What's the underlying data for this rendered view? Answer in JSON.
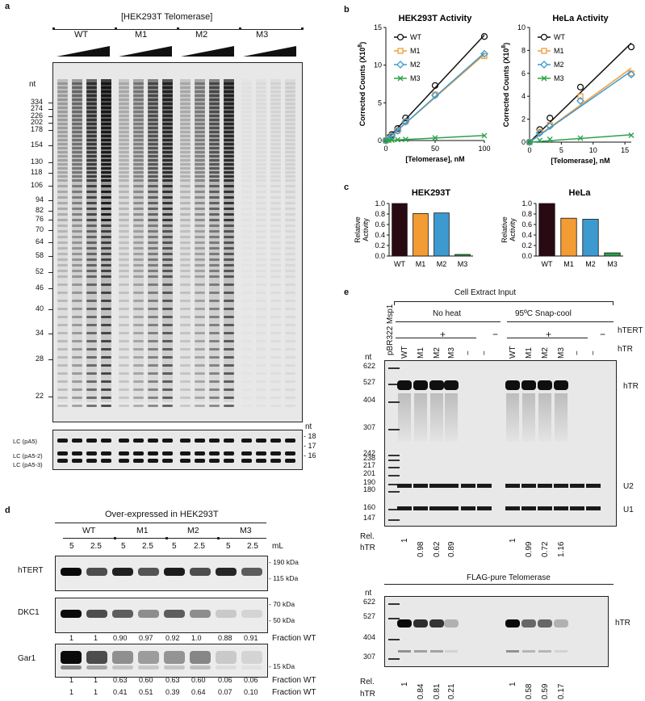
{
  "panels": {
    "a": "a",
    "b": "b",
    "c": "c",
    "d": "d",
    "e": "e"
  },
  "a": {
    "title": "[HEK293T Telomerase]",
    "groups": [
      "WT",
      "M1",
      "M2",
      "M3"
    ],
    "nt_label": "nt",
    "markers": [
      "334",
      "274",
      "226",
      "202",
      "178",
      "154",
      "130",
      "118",
      "106",
      "94",
      "82",
      "76",
      "70",
      "64",
      "58",
      "52",
      "46",
      "40",
      "34",
      "28",
      "22"
    ],
    "lc_labels": [
      "LC (pA5)",
      "LC (pA5-2)",
      "LC (pA5-3)"
    ],
    "lc_nt_label": "nt",
    "lc_markers": [
      "18",
      "17",
      "16"
    ]
  },
  "chart_data": [
    {
      "type": "line",
      "title": "HEK293T Activity",
      "xlabel": "[Telomerase], nM",
      "ylabel": "Corrected Counts (X10",
      "ylabel_sup": "8",
      "ylabel_end": ")",
      "xlim": [
        0,
        100
      ],
      "ylim": [
        0,
        15
      ],
      "xticks": [
        "0",
        "50",
        "100"
      ],
      "yticks": [
        "0",
        "5",
        "10",
        "15"
      ],
      "series": [
        {
          "name": "WT",
          "color": "#111111",
          "marker": "circle",
          "x": [
            0,
            3,
            6,
            12,
            20,
            50,
            100
          ],
          "y": [
            0,
            0.4,
            0.8,
            1.6,
            3.0,
            7.3,
            13.8
          ]
        },
        {
          "name": "M1",
          "color": "#f39c33",
          "marker": "square",
          "x": [
            0,
            3,
            6,
            12,
            20,
            50,
            100
          ],
          "y": [
            0,
            0.3,
            0.6,
            1.3,
            2.5,
            6.1,
            11.2
          ]
        },
        {
          "name": "M2",
          "color": "#3d9ad1",
          "marker": "diamond",
          "x": [
            0,
            3,
            6,
            12,
            20,
            50,
            100
          ],
          "y": [
            0,
            0.3,
            0.6,
            1.3,
            2.5,
            6.0,
            11.5
          ]
        },
        {
          "name": "M3",
          "color": "#2aa24a",
          "marker": "x",
          "x": [
            0,
            3,
            6,
            12,
            20,
            50,
            100
          ],
          "y": [
            0,
            0.02,
            0.05,
            0.1,
            0.15,
            0.35,
            0.65
          ]
        }
      ]
    },
    {
      "type": "line",
      "title": "HeLa Activity",
      "xlabel": "[Telomerase], nM",
      "ylabel": "Corrected Counts (X10",
      "ylabel_sup": "8",
      "ylabel_end": ")",
      "xlim": [
        0,
        16
      ],
      "ylim": [
        0,
        10
      ],
      "xticks": [
        "0",
        "5",
        "10",
        "15"
      ],
      "yticks": [
        "0",
        "2",
        "4",
        "6",
        "8",
        "10"
      ],
      "series": [
        {
          "name": "WT",
          "color": "#111111",
          "marker": "circle",
          "x": [
            0,
            1.6,
            3.2,
            8,
            16
          ],
          "y": [
            0,
            1.1,
            2.1,
            4.8,
            8.3
          ]
        },
        {
          "name": "M1",
          "color": "#f39c33",
          "marker": "square",
          "x": [
            0,
            1.6,
            3.2,
            8,
            16
          ],
          "y": [
            0,
            0.9,
            1.5,
            4.0,
            6.0
          ]
        },
        {
          "name": "M2",
          "color": "#3d9ad1",
          "marker": "diamond",
          "x": [
            0,
            1.6,
            3.2,
            8,
            16
          ],
          "y": [
            0,
            0.8,
            1.4,
            3.6,
            5.9
          ]
        },
        {
          "name": "M3",
          "color": "#2aa24a",
          "marker": "x",
          "x": [
            0,
            1.6,
            3.2,
            8,
            16
          ],
          "y": [
            0,
            0.15,
            0.25,
            0.35,
            0.6
          ]
        }
      ]
    },
    {
      "type": "bar",
      "title": "HEK293T",
      "ylabel": "Relative Activity",
      "ylim": [
        0,
        1.0
      ],
      "yticks": [
        "0.0",
        "0.2",
        "0.4",
        "0.6",
        "0.8",
        "1.0"
      ],
      "categories": [
        "WT",
        "M1",
        "M2",
        "M3"
      ],
      "values": [
        1.0,
        0.81,
        0.82,
        0.03
      ],
      "colors": [
        "#2a0a12",
        "#f39c33",
        "#3d9ad1",
        "#2aa24a"
      ]
    },
    {
      "type": "bar",
      "title": "HeLa",
      "ylabel": "Relative Activity",
      "ylim": [
        0,
        1.0
      ],
      "yticks": [
        "0.0",
        "0.2",
        "0.4",
        "0.6",
        "0.8",
        "1.0"
      ],
      "categories": [
        "WT",
        "M1",
        "M2",
        "M3"
      ],
      "values": [
        1.0,
        0.72,
        0.7,
        0.06
      ],
      "colors": [
        "#2a0a12",
        "#f39c33",
        "#3d9ad1",
        "#2aa24a"
      ]
    }
  ],
  "d": {
    "title": "Over-expressed in HEK293T",
    "groups": [
      "WT",
      "M1",
      "M2",
      "M3"
    ],
    "volumes": [
      "5",
      "2.5",
      "5",
      "2.5",
      "5",
      "2.5",
      "5",
      "2.5"
    ],
    "volume_unit": "mL",
    "blots": [
      {
        "name": "hTERT",
        "markers": [
          "190 kDa",
          "115 kDa"
        ],
        "fractions": [
          "1",
          "1",
          "0.90",
          "0.97",
          "0.92",
          "1.0",
          "0.88",
          "0.91"
        ]
      },
      {
        "name": "DKC1",
        "markers": [
          "70 kDa",
          "50 kDa"
        ],
        "fractions": [
          "1",
          "1",
          "0.63",
          "0.60",
          "0.63",
          "0.60",
          "0.06",
          "0.06"
        ]
      },
      {
        "name": "Gar1",
        "markers": [
          "15 kDa"
        ],
        "fractions": [
          "1",
          "1",
          "0.41",
          "0.51",
          "0.39",
          "0.64",
          "0.07",
          "0.10"
        ]
      }
    ],
    "fraction_label": "Fraction WT"
  },
  "e": {
    "title": "Cell Extract Input",
    "no_heat": "No heat",
    "snap_cool": "95ºC Snap-cool",
    "hTERT_label": "hTERT",
    "hTR_label": "hTR",
    "plus": "+",
    "minus": "−",
    "ladder": "pBR322 Msp1",
    "lanes": [
      "WT",
      "M1",
      "M2",
      "M3",
      "−",
      "−",
      "WT",
      "M1",
      "M2",
      "M3",
      "−",
      "−"
    ],
    "nt_label": "nt",
    "markers": [
      "622",
      "527",
      "404",
      "307",
      "242",
      "238",
      "217",
      "201",
      "190",
      "180",
      "160",
      "147"
    ],
    "band_labels": [
      "hTR",
      "U2",
      "U1"
    ],
    "rel_label": "Rel.",
    "rel_label2": "hTR",
    "rel_values": [
      "1",
      "0.98",
      "0.62",
      "0.89",
      "1",
      "0.99",
      "0.72",
      "1.16"
    ],
    "bottom_title": "FLAG-pure Telomerase",
    "bottom_markers": [
      "622",
      "527",
      "404",
      "307"
    ],
    "bottom_band": "hTR",
    "bottom_rel_values": [
      "1",
      "0.84",
      "0.81",
      "0.21",
      "1",
      "0.58",
      "0.59",
      "0.17"
    ]
  }
}
